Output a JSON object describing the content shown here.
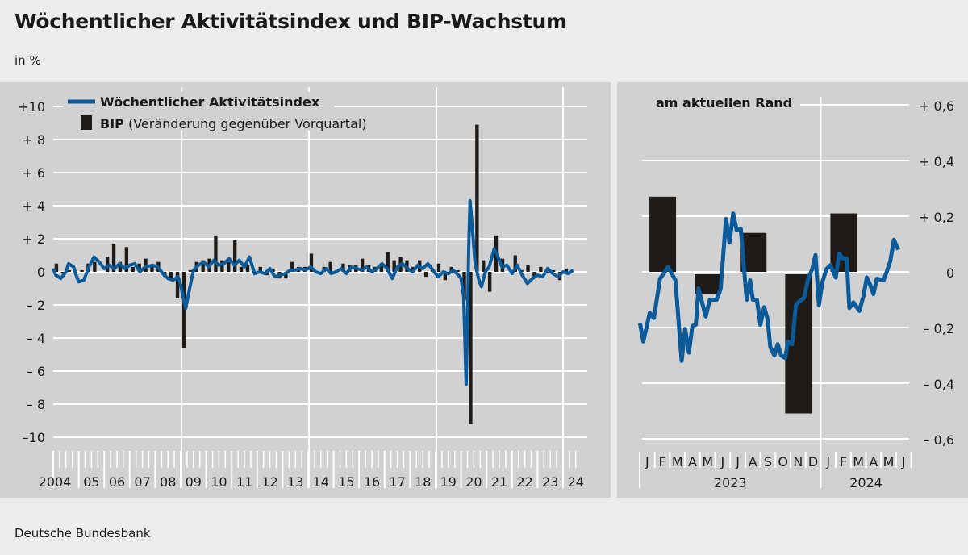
{
  "title": "Wöchentlicher Aktivitätsindex und BIP-Wachstum",
  "unit": "in %",
  "source": "Deutsche Bundesbank",
  "colors": {
    "line": "#0b5a9a",
    "bar": "#1e1b19",
    "panel": "#d1d1d1",
    "grid": "#ffffff"
  },
  "chart_data": [
    {
      "type": "bar+line",
      "title": "",
      "legend": {
        "line_label": "Wöchentlicher Aktivitätsindex",
        "bar_label_bold": "BIP",
        "bar_label_rest": "(Veränderung gegenüber Vorquartal)",
        "placement": "top-left"
      },
      "ylim": [
        -10,
        10
      ],
      "yticks": [
        {
          "v": 10,
          "label": "+10"
        },
        {
          "v": 8,
          "label": "+ 8"
        },
        {
          "v": 6,
          "label": "+ 6"
        },
        {
          "v": 4,
          "label": "+ 4"
        },
        {
          "v": 2,
          "label": "+ 2"
        },
        {
          "v": 0,
          "label": "0"
        },
        {
          "v": -2,
          "label": "– 2"
        },
        {
          "v": -4,
          "label": "– 4"
        },
        {
          "v": -6,
          "label": "– 6"
        },
        {
          "v": -8,
          "label": "– 8"
        },
        {
          "v": -10,
          "label": "–10"
        }
      ],
      "xlim": [
        2004,
        2024.6
      ],
      "xticks": [
        "2004",
        "05",
        "06",
        "07",
        "08",
        "09",
        "10",
        "11",
        "12",
        "13",
        "14",
        "15",
        "16",
        "17",
        "18",
        "19",
        "20",
        "21",
        "22",
        "23",
        "24"
      ],
      "bip_start": 2004,
      "bip_quarterly": [
        0.5,
        -0.1,
        0.1,
        -0.1,
        0.1,
        0.5,
        0.6,
        0.0,
        0.9,
        1.7,
        0.6,
        1.5,
        0.3,
        0.5,
        0.8,
        0.3,
        0.6,
        -0.3,
        -0.4,
        -1.6,
        -4.6,
        0.1,
        0.6,
        0.7,
        0.8,
        2.2,
        0.7,
        0.6,
        1.9,
        0.3,
        0.4,
        -0.1,
        0.3,
        -0.2,
        0.2,
        -0.4,
        -0.4,
        0.6,
        0.3,
        0.3,
        1.1,
        -0.1,
        0.3,
        0.6,
        0.1,
        0.5,
        0.4,
        0.4,
        0.8,
        0.4,
        0.3,
        0.5,
        1.2,
        0.7,
        0.9,
        0.7,
        0.3,
        0.7,
        -0.3,
        0.2,
        0.5,
        -0.5,
        0.3,
        0.1,
        -1.7,
        -9.2,
        8.9,
        0.7,
        -1.2,
        2.2,
        0.8,
        0.0,
        1.0,
        0.1,
        0.4,
        -0.4,
        0.3,
        -0.1,
        0.1,
        -0.5,
        0.2
      ],
      "index_series": [
        [
          2004.0,
          0.2
        ],
        [
          2004.1,
          -0.2
        ],
        [
          2004.3,
          -0.4
        ],
        [
          2004.5,
          0.0
        ],
        [
          2004.6,
          0.5
        ],
        [
          2004.8,
          0.3
        ],
        [
          2004.9,
          -0.2
        ],
        [
          2005.0,
          -0.6
        ],
        [
          2005.2,
          -0.5
        ],
        [
          2005.4,
          0.3
        ],
        [
          2005.6,
          0.9
        ],
        [
          2005.8,
          0.6
        ],
        [
          2006.0,
          0.2
        ],
        [
          2006.2,
          0.4
        ],
        [
          2006.4,
          0.2
        ],
        [
          2006.6,
          0.5
        ],
        [
          2006.8,
          0.2
        ],
        [
          2007.0,
          0.4
        ],
        [
          2007.2,
          0.5
        ],
        [
          2007.4,
          0.0
        ],
        [
          2007.6,
          0.3
        ],
        [
          2007.9,
          0.4
        ],
        [
          2008.1,
          0.3
        ],
        [
          2008.3,
          -0.1
        ],
        [
          2008.5,
          -0.4
        ],
        [
          2008.7,
          -0.5
        ],
        [
          2008.9,
          -0.3
        ],
        [
          2009.0,
          -0.8
        ],
        [
          2009.1,
          -1.6
        ],
        [
          2009.2,
          -2.2
        ],
        [
          2009.35,
          -1.0
        ],
        [
          2009.5,
          0.1
        ],
        [
          2009.7,
          0.4
        ],
        [
          2009.9,
          0.6
        ],
        [
          2010.1,
          0.3
        ],
        [
          2010.3,
          0.7
        ],
        [
          2010.5,
          0.4
        ],
        [
          2010.7,
          0.5
        ],
        [
          2010.9,
          0.8
        ],
        [
          2011.1,
          0.4
        ],
        [
          2011.3,
          0.7
        ],
        [
          2011.5,
          0.3
        ],
        [
          2011.7,
          0.9
        ],
        [
          2011.9,
          -0.1
        ],
        [
          2012.1,
          0.0
        ],
        [
          2012.3,
          -0.1
        ],
        [
          2012.5,
          0.2
        ],
        [
          2012.7,
          -0.3
        ],
        [
          2012.9,
          -0.2
        ],
        [
          2013.1,
          -0.1
        ],
        [
          2013.3,
          0.1
        ],
        [
          2013.5,
          0.1
        ],
        [
          2013.7,
          0.2
        ],
        [
          2013.9,
          0.1
        ],
        [
          2014.1,
          0.3
        ],
        [
          2014.3,
          0.0
        ],
        [
          2014.5,
          -0.1
        ],
        [
          2014.7,
          0.2
        ],
        [
          2014.9,
          -0.1
        ],
        [
          2015.1,
          0.0
        ],
        [
          2015.3,
          0.2
        ],
        [
          2015.5,
          -0.1
        ],
        [
          2015.7,
          0.3
        ],
        [
          2015.9,
          0.2
        ],
        [
          2016.1,
          0.1
        ],
        [
          2016.3,
          0.3
        ],
        [
          2016.5,
          0.0
        ],
        [
          2016.7,
          0.2
        ],
        [
          2016.9,
          0.5
        ],
        [
          2017.1,
          0.2
        ],
        [
          2017.3,
          -0.4
        ],
        [
          2017.5,
          0.3
        ],
        [
          2017.7,
          0.5
        ],
        [
          2017.9,
          0.2
        ],
        [
          2018.1,
          0.0
        ],
        [
          2018.3,
          0.4
        ],
        [
          2018.5,
          0.2
        ],
        [
          2018.7,
          0.5
        ],
        [
          2018.9,
          0.1
        ],
        [
          2019.1,
          -0.3
        ],
        [
          2019.3,
          0.0
        ],
        [
          2019.5,
          -0.1
        ],
        [
          2019.7,
          0.1
        ],
        [
          2019.9,
          -0.2
        ],
        [
          2020.0,
          -0.4
        ],
        [
          2020.1,
          -1.5
        ],
        [
          2020.2,
          -6.8
        ],
        [
          2020.25,
          -3.0
        ],
        [
          2020.3,
          1.5
        ],
        [
          2020.35,
          4.3
        ],
        [
          2020.45,
          2.5
        ],
        [
          2020.55,
          0.5
        ],
        [
          2020.7,
          -0.5
        ],
        [
          2020.8,
          -0.9
        ],
        [
          2020.95,
          0.0
        ],
        [
          2021.1,
          0.3
        ],
        [
          2021.3,
          1.4
        ],
        [
          2021.45,
          0.9
        ],
        [
          2021.6,
          0.3
        ],
        [
          2021.8,
          0.4
        ],
        [
          2022.0,
          -0.1
        ],
        [
          2022.2,
          0.4
        ],
        [
          2022.4,
          -0.2
        ],
        [
          2022.6,
          -0.7
        ],
        [
          2022.8,
          -0.4
        ],
        [
          2023.0,
          -0.2
        ],
        [
          2023.2,
          -0.3
        ],
        [
          2023.4,
          0.2
        ],
        [
          2023.6,
          -0.1
        ],
        [
          2023.8,
          -0.3
        ],
        [
          2024.0,
          0.0
        ],
        [
          2024.2,
          -0.1
        ],
        [
          2024.4,
          0.1
        ]
      ]
    },
    {
      "type": "bar+line",
      "title": "am aktuellen Rand",
      "ylim": [
        -0.6,
        0.6
      ],
      "yticks": [
        {
          "v": 0.6,
          "label": "+ 0,6"
        },
        {
          "v": 0.4,
          "label": "+ 0,4"
        },
        {
          "v": 0.2,
          "label": "+ 0,2"
        },
        {
          "v": 0,
          "label": "0"
        },
        {
          "v": -0.2,
          "label": "– 0,2"
        },
        {
          "v": -0.4,
          "label": "– 0,4"
        },
        {
          "v": -0.6,
          "label": "– 0,6"
        }
      ],
      "months": [
        "J",
        "F",
        "M",
        "A",
        "M",
        "J",
        "J",
        "A",
        "S",
        "O",
        "N",
        "D",
        "J",
        "F",
        "M",
        "A",
        "M",
        "J"
      ],
      "years": [
        "2023",
        "2024"
      ],
      "bip_quarterly": [
        0.27,
        -0.07,
        0.14,
        -0.5,
        0.21
      ],
      "index_series": [
        [
          0.02,
          -0.185
        ],
        [
          0.24,
          -0.25
        ],
        [
          0.67,
          -0.147
        ],
        [
          0.94,
          -0.166
        ],
        [
          1.35,
          -0.025
        ],
        [
          1.89,
          0.017
        ],
        [
          2.37,
          -0.03
        ],
        [
          2.78,
          -0.32
        ],
        [
          3.01,
          -0.205
        ],
        [
          3.26,
          -0.29
        ],
        [
          3.49,
          -0.195
        ],
        [
          3.72,
          -0.19
        ],
        [
          3.9,
          -0.06
        ],
        [
          4.38,
          -0.16
        ],
        [
          4.65,
          -0.1
        ],
        [
          5.1,
          -0.1
        ],
        [
          5.37,
          -0.06
        ],
        [
          5.72,
          0.19
        ],
        [
          5.95,
          0.105
        ],
        [
          6.2,
          0.21
        ],
        [
          6.43,
          0.15
        ],
        [
          6.7,
          0.155
        ],
        [
          7.09,
          -0.1
        ],
        [
          7.32,
          -0.03
        ],
        [
          7.5,
          -0.1
        ],
        [
          7.77,
          -0.1
        ],
        [
          8.0,
          -0.19
        ],
        [
          8.25,
          -0.127
        ],
        [
          8.48,
          -0.17
        ],
        [
          8.66,
          -0.27
        ],
        [
          8.93,
          -0.3
        ],
        [
          9.15,
          -0.26
        ],
        [
          9.38,
          -0.3
        ],
        [
          9.65,
          -0.31
        ],
        [
          9.83,
          -0.25
        ],
        [
          10.1,
          -0.26
        ],
        [
          10.36,
          -0.12
        ],
        [
          10.54,
          -0.108
        ],
        [
          10.9,
          -0.093
        ],
        [
          11.17,
          -0.025
        ],
        [
          11.44,
          0.01
        ],
        [
          11.65,
          0.06
        ],
        [
          11.88,
          -0.12
        ],
        [
          12.11,
          -0.035
        ],
        [
          12.38,
          0.01
        ],
        [
          12.65,
          0.024
        ],
        [
          13.0,
          -0.02
        ],
        [
          13.22,
          0.066
        ],
        [
          13.45,
          0.048
        ],
        [
          13.72,
          0.048
        ],
        [
          13.9,
          -0.13
        ],
        [
          14.17,
          -0.11
        ],
        [
          14.56,
          -0.14
        ],
        [
          14.83,
          -0.088
        ],
        [
          15.06,
          -0.02
        ],
        [
          15.27,
          -0.045
        ],
        [
          15.5,
          -0.08
        ],
        [
          15.72,
          -0.025
        ],
        [
          16.17,
          -0.03
        ],
        [
          16.4,
          0.004
        ],
        [
          16.61,
          0.038
        ],
        [
          16.85,
          0.115
        ],
        [
          17.15,
          0.08
        ]
      ]
    }
  ]
}
